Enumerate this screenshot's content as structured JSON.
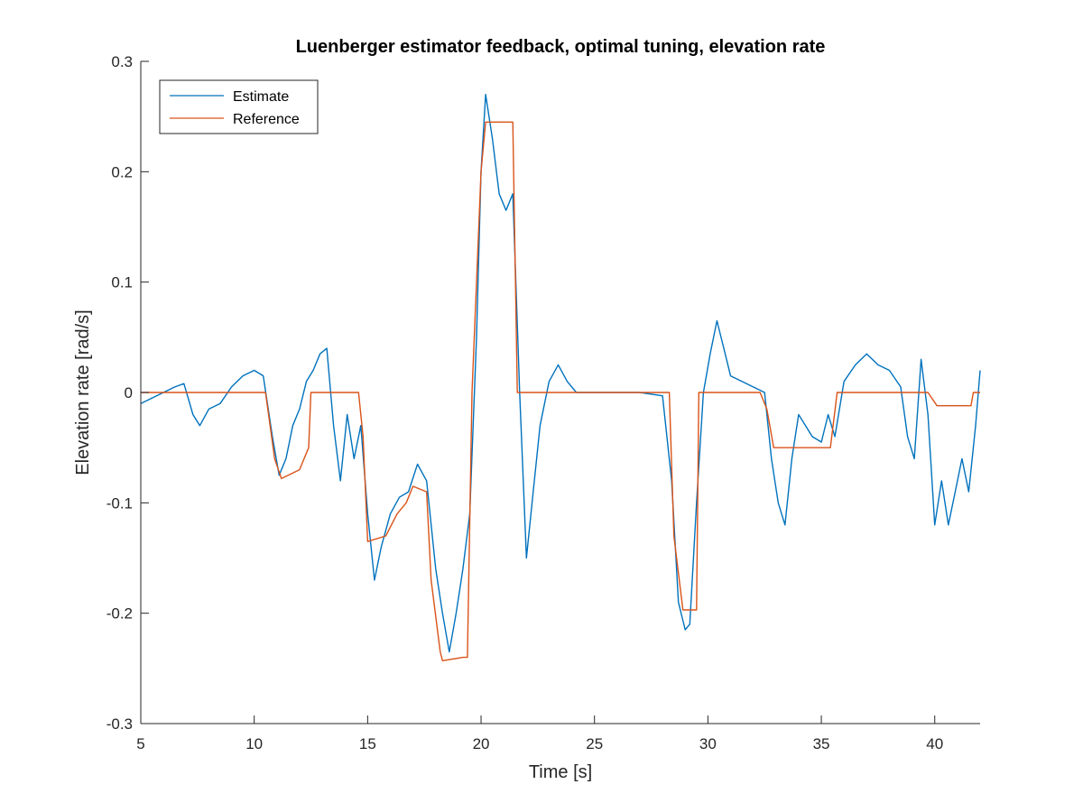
{
  "chart_data": {
    "type": "line",
    "title": "Luenberger estimator feedback, optimal tuning, elevation rate",
    "xlabel": "Time [s]",
    "ylabel": "Elevation rate [rad/s]",
    "xlim": [
      5,
      42
    ],
    "ylim": [
      -0.3,
      0.3
    ],
    "xticks": [
      5,
      10,
      15,
      20,
      25,
      30,
      35,
      40
    ],
    "yticks": [
      -0.3,
      -0.2,
      -0.1,
      0,
      0.1,
      0.2,
      0.3
    ],
    "xtick_labels": [
      "5",
      "10",
      "15",
      "20",
      "25",
      "30",
      "35",
      "40"
    ],
    "ytick_labels": [
      "-0.3",
      "-0.2",
      "-0.1",
      "0",
      "0.1",
      "0.2",
      "0.3"
    ],
    "grid": false,
    "legend_position": "top-left",
    "series": [
      {
        "name": "Estimate",
        "color": "#0072BD",
        "x": [
          5.0,
          5.5,
          6.0,
          6.5,
          6.9,
          7.3,
          7.6,
          8.0,
          8.5,
          9.0,
          9.5,
          10.0,
          10.4,
          10.8,
          11.1,
          11.4,
          11.7,
          12.0,
          12.3,
          12.6,
          12.9,
          13.2,
          13.5,
          13.8,
          14.1,
          14.4,
          14.7,
          15.0,
          15.3,
          15.6,
          16.0,
          16.4,
          16.8,
          17.2,
          17.6,
          18.0,
          18.3,
          18.6,
          18.9,
          19.2,
          19.5,
          19.8,
          20.0,
          20.2,
          20.5,
          20.8,
          21.1,
          21.4,
          21.7,
          22.0,
          22.3,
          22.6,
          23.0,
          23.4,
          23.8,
          24.2,
          25.0,
          26.0,
          27.0,
          28.0,
          28.4,
          28.7,
          29.0,
          29.2,
          29.5,
          29.8,
          30.1,
          30.4,
          30.7,
          31.0,
          31.5,
          32.0,
          32.5,
          32.8,
          33.1,
          33.4,
          33.7,
          34.0,
          34.3,
          34.6,
          35.0,
          35.3,
          35.6,
          36.0,
          36.5,
          37.0,
          37.5,
          38.0,
          38.5,
          38.8,
          39.1,
          39.4,
          39.7,
          40.0,
          40.3,
          40.6,
          40.9,
          41.2,
          41.5,
          41.8,
          42.0
        ],
        "y": [
          -0.01,
          -0.005,
          0.0,
          0.005,
          0.008,
          -0.02,
          -0.03,
          -0.015,
          -0.01,
          0.005,
          0.015,
          0.02,
          0.015,
          -0.04,
          -0.075,
          -0.06,
          -0.03,
          -0.015,
          0.01,
          0.02,
          0.035,
          0.04,
          -0.03,
          -0.08,
          -0.02,
          -0.06,
          -0.03,
          -0.11,
          -0.17,
          -0.14,
          -0.11,
          -0.095,
          -0.09,
          -0.065,
          -0.08,
          -0.16,
          -0.2,
          -0.235,
          -0.2,
          -0.16,
          -0.11,
          0.05,
          0.2,
          0.27,
          0.23,
          0.18,
          0.165,
          0.18,
          0.0,
          -0.15,
          -0.09,
          -0.03,
          0.01,
          0.025,
          0.01,
          0.0,
          0.0,
          0.0,
          0.0,
          -0.003,
          -0.08,
          -0.19,
          -0.215,
          -0.21,
          -0.1,
          0.0,
          0.035,
          0.065,
          0.04,
          0.015,
          0.01,
          0.005,
          0.0,
          -0.06,
          -0.1,
          -0.12,
          -0.06,
          -0.02,
          -0.03,
          -0.04,
          -0.045,
          -0.02,
          -0.04,
          0.01,
          0.025,
          0.035,
          0.025,
          0.02,
          0.005,
          -0.04,
          -0.06,
          0.03,
          -0.02,
          -0.12,
          -0.08,
          -0.12,
          -0.09,
          -0.06,
          -0.09,
          -0.03,
          0.02
        ]
      },
      {
        "name": "Reference",
        "color": "#D95319",
        "x": [
          5.0,
          10.5,
          10.9,
          11.2,
          11.5,
          12.0,
          12.4,
          12.5,
          14.6,
          14.8,
          15.0,
          15.8,
          16.3,
          16.7,
          17.0,
          17.6,
          17.8,
          18.2,
          18.3,
          19.2,
          19.4,
          19.6,
          20.0,
          20.2,
          21.4,
          21.6,
          28.3,
          28.5,
          28.9,
          29.5,
          29.6,
          32.3,
          32.6,
          32.9,
          35.4,
          35.7,
          39.7,
          40.1,
          41.6,
          41.7,
          42.0
        ],
        "y": [
          0.0,
          0.0,
          -0.06,
          -0.078,
          -0.075,
          -0.07,
          -0.05,
          0.0,
          0.0,
          -0.04,
          -0.135,
          -0.13,
          -0.11,
          -0.1,
          -0.085,
          -0.09,
          -0.17,
          -0.235,
          -0.243,
          -0.24,
          -0.24,
          0.0,
          0.2,
          0.245,
          0.245,
          0.0,
          0.0,
          -0.13,
          -0.197,
          -0.197,
          0.0,
          0.0,
          -0.015,
          -0.05,
          -0.05,
          0.0,
          0.0,
          -0.012,
          -0.012,
          0.0,
          0.0
        ]
      }
    ]
  }
}
